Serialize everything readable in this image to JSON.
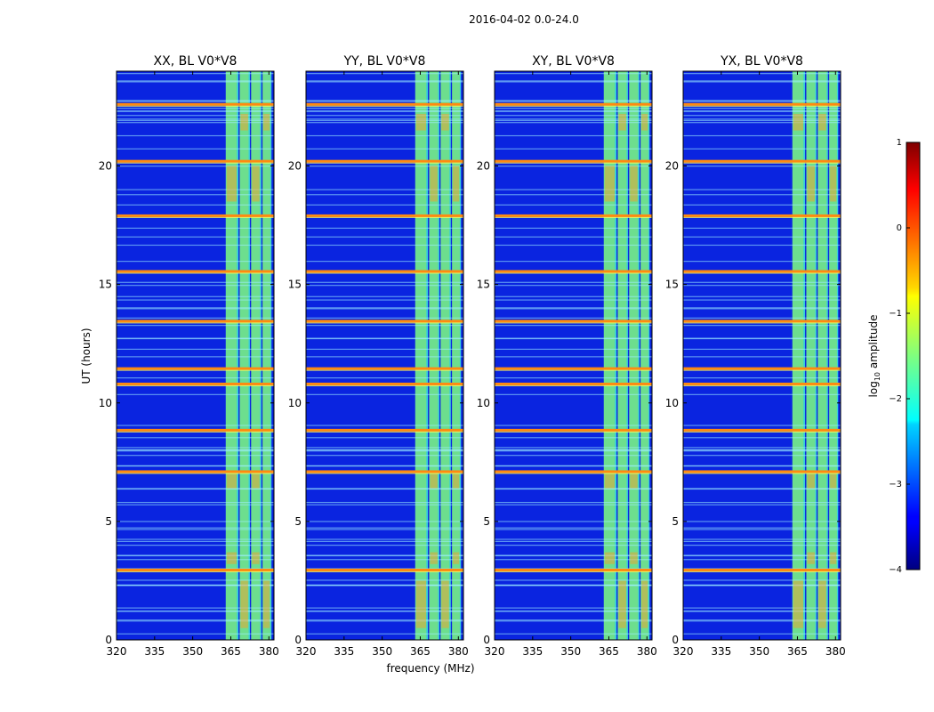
{
  "figure": {
    "suptitle": "2016-04-02 0.0-24.0"
  },
  "chart_data": {
    "type": "heatmap",
    "ylabel": "UT (hours)",
    "xlabel": "frequency (MHz)",
    "xlim": [
      320,
      382
    ],
    "ylim": [
      0,
      24
    ],
    "xticks": [
      320,
      335,
      350,
      365,
      380
    ],
    "yticks": [
      0,
      5,
      10,
      15,
      20
    ],
    "panels": [
      {
        "title": "XX, BL V0*V8"
      },
      {
        "title": "YY, BL V0*V8"
      },
      {
        "title": "XY, BL V0*V8"
      },
      {
        "title": "YX, BL V0*V8"
      }
    ],
    "colorbar": {
      "label": "log10 amplitude",
      "label_main": "log",
      "label_sub": "10",
      "label_rest": " amplitude",
      "range": [
        -4,
        1
      ],
      "ticks": [
        1,
        0,
        -1,
        -2,
        -3,
        -4
      ],
      "tick_labels": [
        "1",
        "0",
        "−1",
        "−2",
        "−3",
        "−4"
      ],
      "colormap": "jet"
    },
    "rfi_bands_mhz": [
      [
        363,
        368
      ],
      [
        368.5,
        372.5
      ],
      [
        373,
        377
      ],
      [
        377.5,
        381
      ]
    ],
    "strong_rfi_hours": [
      2.95,
      7.1,
      8.85,
      10.8,
      11.45,
      13.45,
      15.55,
      17.9,
      20.2,
      22.6
    ],
    "colors": {
      "background": "#0a24e0",
      "band_fill": "#7fff7f",
      "strong_line": "#ff8a10"
    }
  }
}
